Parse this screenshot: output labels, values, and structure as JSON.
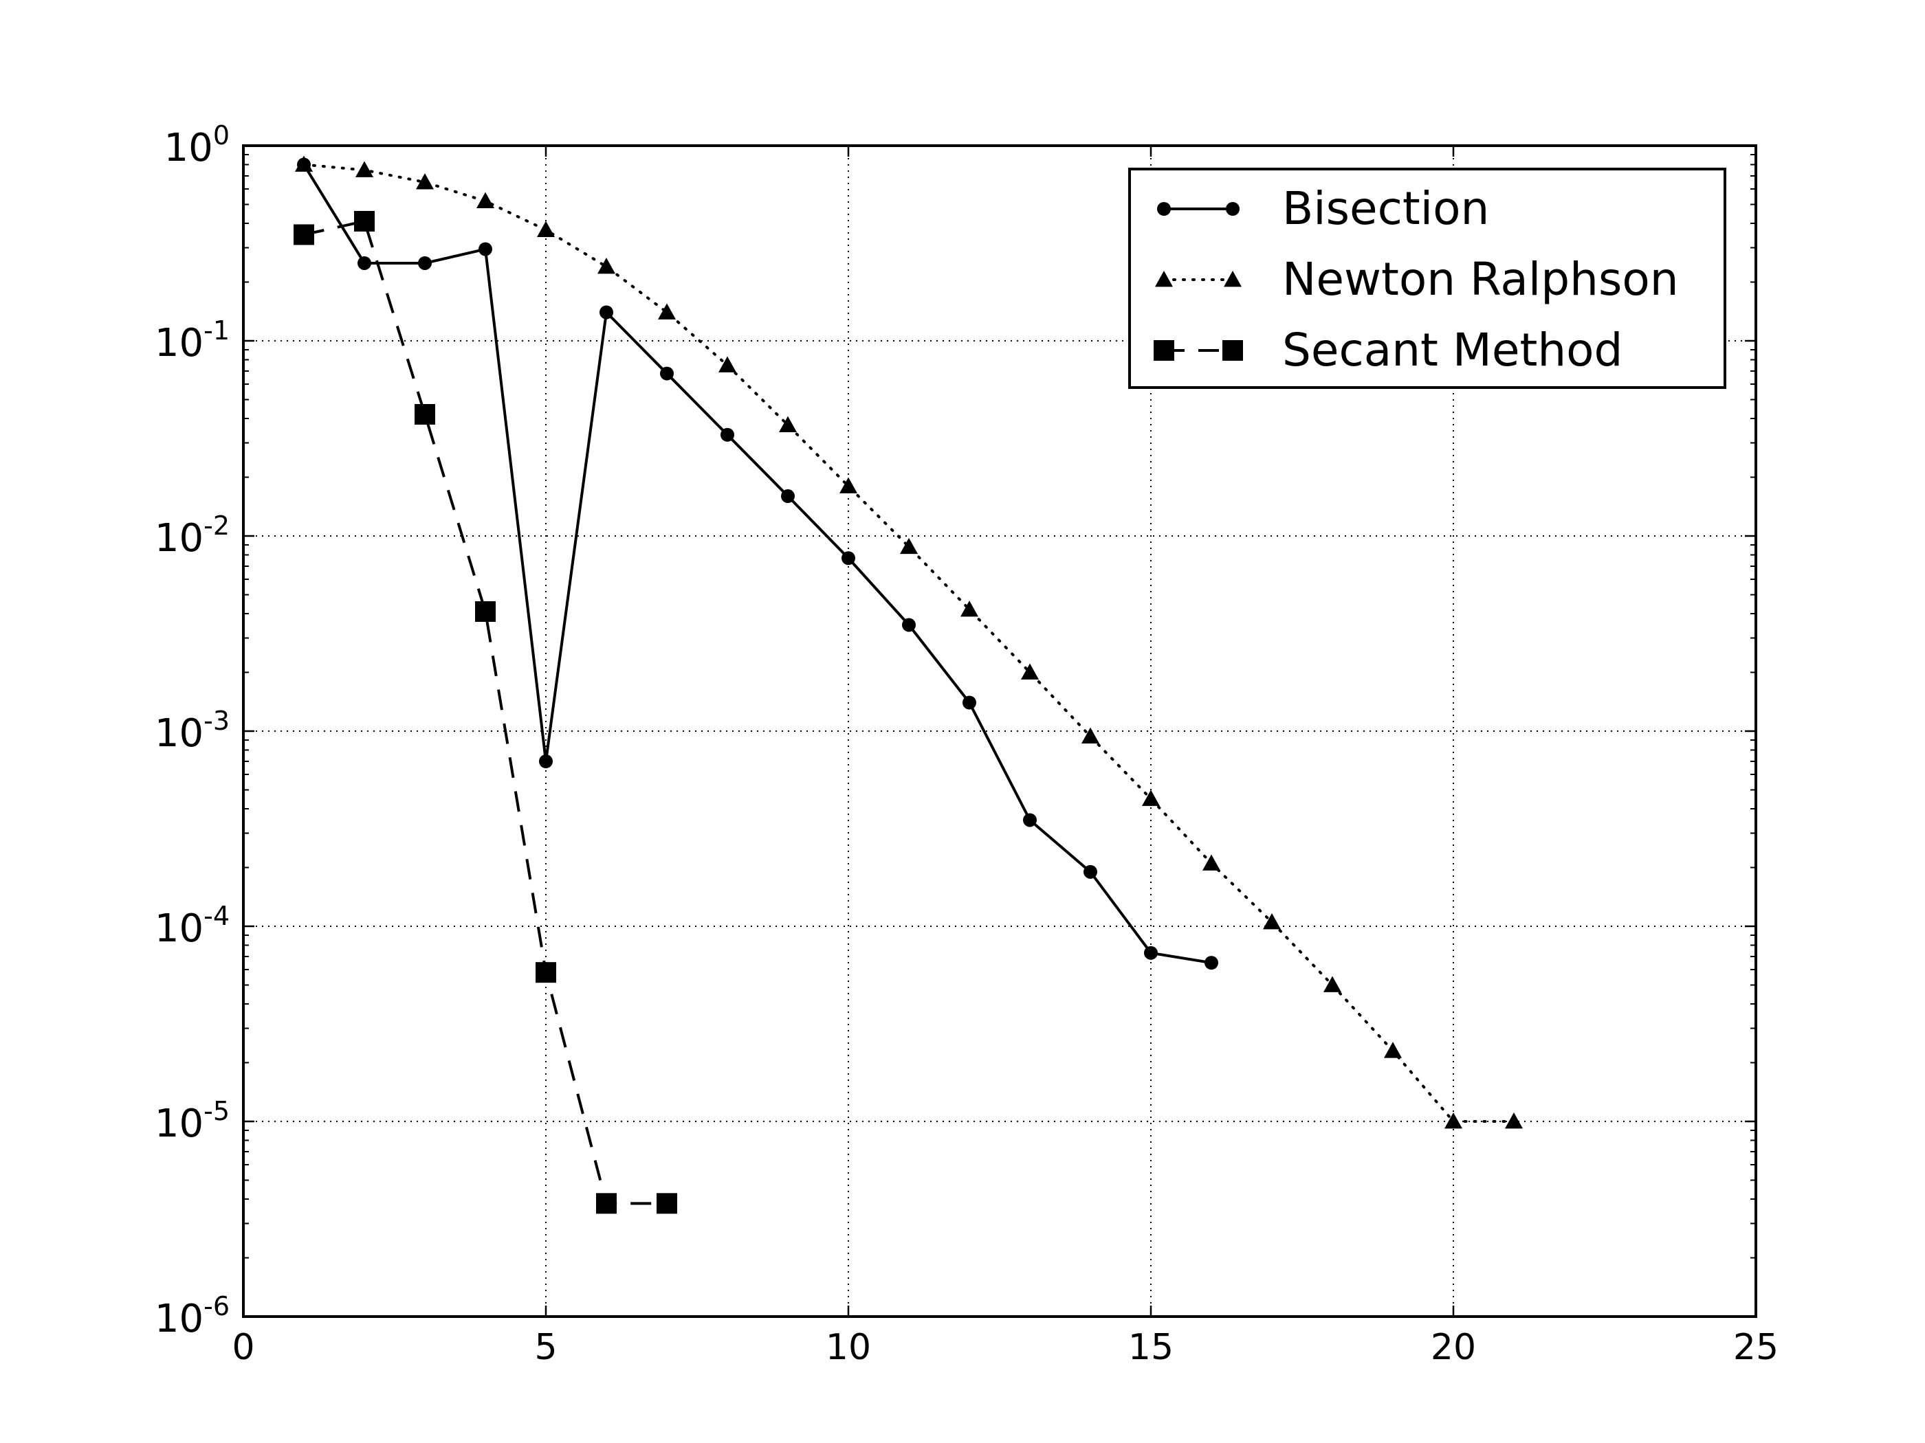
{
  "chart_data": {
    "type": "line",
    "title": "",
    "xlabel": "",
    "ylabel": "",
    "xlim": [
      0,
      25
    ],
    "ylim": [
      1e-06,
      1
    ],
    "yscale": "log",
    "grid": true,
    "legend_position": "top-right",
    "x_ticks": [
      {
        "value": 0,
        "label": "0"
      },
      {
        "value": 5,
        "label": "5"
      },
      {
        "value": 10,
        "label": "10"
      },
      {
        "value": 15,
        "label": "15"
      },
      {
        "value": 20,
        "label": "20"
      },
      {
        "value": 25,
        "label": "25"
      }
    ],
    "y_ticks": [
      {
        "value": 1,
        "base": "10",
        "exp": "0"
      },
      {
        "value": 0.1,
        "base": "10",
        "exp": "-1"
      },
      {
        "value": 0.01,
        "base": "10",
        "exp": "-2"
      },
      {
        "value": 0.001,
        "base": "10",
        "exp": "-3"
      },
      {
        "value": 0.0001,
        "base": "10",
        "exp": "-4"
      },
      {
        "value": 1e-05,
        "base": "10",
        "exp": "-5"
      },
      {
        "value": 1e-06,
        "base": "10",
        "exp": "-6"
      }
    ],
    "series": [
      {
        "name": "Bisection",
        "line_style": "solid",
        "marker": "circle",
        "color": "#000000",
        "x": [
          1,
          2,
          3,
          4,
          5,
          6,
          7,
          8,
          9,
          10,
          11,
          12,
          13,
          14,
          15,
          16
        ],
        "y": [
          0.8,
          0.25,
          0.25,
          0.295,
          0.0007,
          0.14,
          0.068,
          0.033,
          0.016,
          0.0077,
          0.0035,
          0.0014,
          0.00035,
          0.00019,
          7.3e-05,
          6.5e-05
        ]
      },
      {
        "name": "Newton Ralphson",
        "line_style": "dotted",
        "marker": "triangle",
        "color": "#000000",
        "x": [
          1,
          2,
          3,
          4,
          5,
          6,
          7,
          8,
          9,
          10,
          11,
          12,
          13,
          14,
          15,
          16,
          17,
          18,
          19,
          20,
          21
        ],
        "y": [
          0.8,
          0.75,
          0.65,
          0.52,
          0.37,
          0.24,
          0.14,
          0.075,
          0.037,
          0.018,
          0.0088,
          0.0042,
          0.002,
          0.00094,
          0.00045,
          0.00021,
          0.000105,
          5e-05,
          2.3e-05,
          1e-05,
          1e-05
        ]
      },
      {
        "name": "Secant Method",
        "line_style": "dashed",
        "marker": "square",
        "color": "#000000",
        "x": [
          1,
          2,
          3,
          4,
          5,
          6,
          7
        ],
        "y": [
          0.35,
          0.41,
          0.042,
          0.0041,
          5.8e-05,
          3.8e-06,
          3.8e-06
        ]
      }
    ]
  }
}
